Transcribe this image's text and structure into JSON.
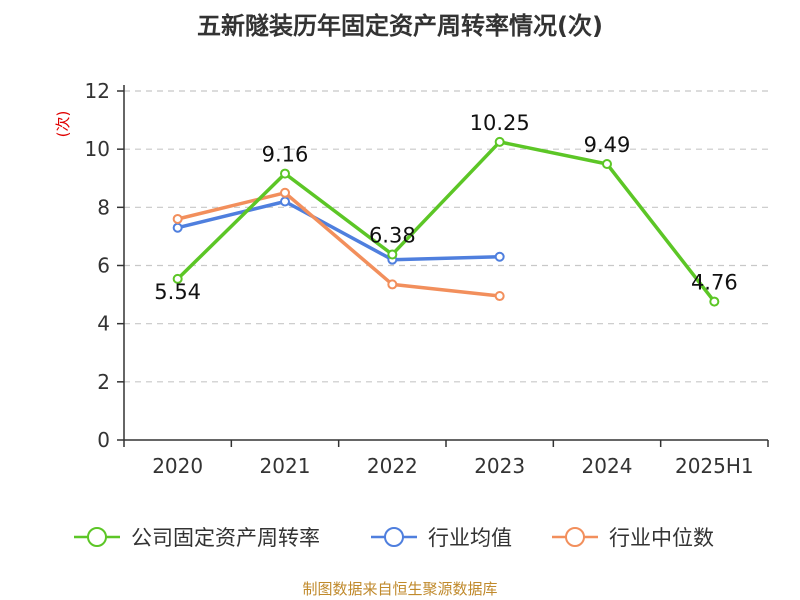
{
  "chart_data": {
    "type": "line",
    "title": "五新隧装历年固定资产周转率情况(次)",
    "ylabel": "(次)",
    "xlabel": "",
    "categories": [
      "2020",
      "2021",
      "2022",
      "2023",
      "2024",
      "2025H1"
    ],
    "ylim": [
      0,
      12
    ],
    "yticks": [
      0,
      2,
      4,
      6,
      8,
      10,
      12
    ],
    "grid": true,
    "legend_position": "bottom",
    "series": [
      {
        "name": "公司固定资产周转率",
        "color": "#5cc626",
        "values": [
          5.54,
          9.16,
          6.38,
          10.25,
          9.49,
          4.76
        ],
        "labels": [
          "5.54",
          "9.16",
          "6.38",
          "10.25",
          "9.49",
          "4.76"
        ]
      },
      {
        "name": "行业均值",
        "color": "#4f7fde",
        "values": [
          7.3,
          8.2,
          6.2,
          6.3,
          null,
          null
        ]
      },
      {
        "name": "行业中位数",
        "color": "#f28f5c",
        "values": [
          7.6,
          8.5,
          5.35,
          4.95,
          null,
          null
        ]
      }
    ]
  },
  "source": "制图数据来自恒生聚源数据库"
}
